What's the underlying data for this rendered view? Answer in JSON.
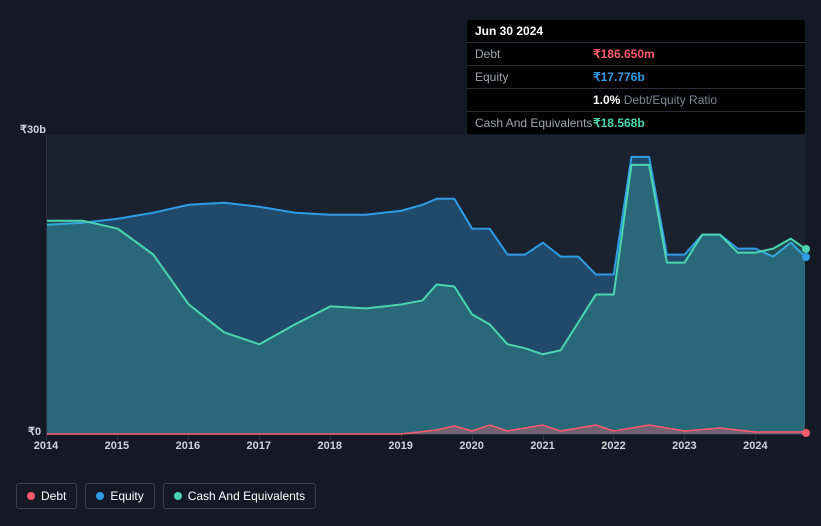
{
  "tooltip": {
    "date": "Jun 30 2024",
    "rows": [
      {
        "label": "Debt",
        "value": "₹186.650m",
        "color": "#ff5a6e"
      },
      {
        "label": "Equity",
        "value": "₹17.776b",
        "color": "#2e9de6"
      },
      {
        "label": "",
        "value_prefix": "1.0%",
        "value_suffix": " Debt/Equity Ratio",
        "prefix_color": "#ffffff",
        "suffix_color": "#808893"
      },
      {
        "label": "Cash And Equivalents",
        "value": "₹18.568b",
        "color": "#4bd6b0"
      }
    ]
  },
  "chart": {
    "type": "area",
    "background_color": "#1a2230",
    "page_bg": "#131a26",
    "border_color": "#2a3240",
    "ylim": [
      0,
      30
    ],
    "ylabels": [
      {
        "v": 30,
        "text": "₹30b"
      },
      {
        "v": 0,
        "text": "₹0"
      }
    ],
    "x_years": [
      2014,
      2015,
      2016,
      2017,
      2018,
      2019,
      2020,
      2021,
      2022,
      2023,
      2024
    ],
    "x_domain": [
      2014,
      2024.7
    ],
    "series": [
      {
        "name": "Debt",
        "color": "#ff5a6e",
        "fill_opacity": 0.35,
        "line_width": 1.5,
        "points": [
          [
            2014,
            0
          ],
          [
            2015,
            0
          ],
          [
            2016,
            0
          ],
          [
            2017,
            0
          ],
          [
            2018,
            0
          ],
          [
            2019,
            0
          ],
          [
            2019.5,
            0.4
          ],
          [
            2019.75,
            0.8
          ],
          [
            2020,
            0.3
          ],
          [
            2020.25,
            0.9
          ],
          [
            2020.5,
            0.3
          ],
          [
            2021,
            0.9
          ],
          [
            2021.25,
            0.3
          ],
          [
            2021.75,
            0.9
          ],
          [
            2022,
            0.3
          ],
          [
            2022.5,
            0.9
          ],
          [
            2023,
            0.3
          ],
          [
            2023.5,
            0.6
          ],
          [
            2024,
            0.2
          ],
          [
            2024.5,
            0.2
          ],
          [
            2024.7,
            0.2
          ]
        ]
      },
      {
        "name": "Equity",
        "color": "#2e9de6",
        "fill_opacity": 0.32,
        "line_width": 2,
        "points": [
          [
            2014,
            21
          ],
          [
            2014.5,
            21.2
          ],
          [
            2015,
            21.6
          ],
          [
            2015.5,
            22.2
          ],
          [
            2016,
            23
          ],
          [
            2016.5,
            23.2
          ],
          [
            2017,
            22.8
          ],
          [
            2017.5,
            22.2
          ],
          [
            2018,
            22
          ],
          [
            2018.5,
            22
          ],
          [
            2019,
            22.4
          ],
          [
            2019.3,
            23
          ],
          [
            2019.5,
            23.6
          ],
          [
            2019.75,
            23.6
          ],
          [
            2020,
            20.6
          ],
          [
            2020.25,
            20.6
          ],
          [
            2020.5,
            18
          ],
          [
            2020.75,
            18
          ],
          [
            2021,
            19.2
          ],
          [
            2021.25,
            17.8
          ],
          [
            2021.5,
            17.8
          ],
          [
            2021.75,
            16
          ],
          [
            2022,
            16
          ],
          [
            2022.25,
            27.8
          ],
          [
            2022.5,
            27.8
          ],
          [
            2022.75,
            18
          ],
          [
            2023,
            18
          ],
          [
            2023.25,
            20
          ],
          [
            2023.5,
            20
          ],
          [
            2023.75,
            18.6
          ],
          [
            2024,
            18.6
          ],
          [
            2024.25,
            17.8
          ],
          [
            2024.5,
            19.2
          ],
          [
            2024.7,
            17.8
          ]
        ]
      },
      {
        "name": "Cash And Equivalents",
        "color": "#4bd6b0",
        "fill_opacity": 0.22,
        "line_width": 2,
        "points": [
          [
            2014,
            21.4
          ],
          [
            2014.5,
            21.4
          ],
          [
            2015,
            20.6
          ],
          [
            2015.5,
            18
          ],
          [
            2016,
            13
          ],
          [
            2016.5,
            10.2
          ],
          [
            2017,
            9
          ],
          [
            2017.5,
            11
          ],
          [
            2018,
            12.8
          ],
          [
            2018.5,
            12.6
          ],
          [
            2019,
            13
          ],
          [
            2019.3,
            13.4
          ],
          [
            2019.5,
            15
          ],
          [
            2019.75,
            14.8
          ],
          [
            2020,
            12
          ],
          [
            2020.25,
            11
          ],
          [
            2020.5,
            9
          ],
          [
            2020.75,
            8.6
          ],
          [
            2021,
            8
          ],
          [
            2021.25,
            8.4
          ],
          [
            2021.5,
            11.2
          ],
          [
            2021.75,
            14
          ],
          [
            2022,
            14
          ],
          [
            2022.25,
            27
          ],
          [
            2022.5,
            27
          ],
          [
            2022.75,
            17.2
          ],
          [
            2023,
            17.2
          ],
          [
            2023.25,
            20
          ],
          [
            2023.5,
            20
          ],
          [
            2023.75,
            18.2
          ],
          [
            2024,
            18.2
          ],
          [
            2024.25,
            18.6
          ],
          [
            2024.5,
            19.6
          ],
          [
            2024.7,
            18.6
          ]
        ]
      }
    ],
    "end_markers": [
      {
        "series": "Debt",
        "color": "#ff5a6e",
        "y": 0.2
      },
      {
        "series": "Equity",
        "color": "#2e9de6",
        "y": 17.8
      },
      {
        "series": "Cash And Equivalents",
        "color": "#4bd6b0",
        "y": 18.6
      }
    ]
  },
  "legend": {
    "items": [
      {
        "label": "Debt",
        "color": "#ff5a6e"
      },
      {
        "label": "Equity",
        "color": "#2e9de6"
      },
      {
        "label": "Cash And Equivalents",
        "color": "#4bd6b0"
      }
    ]
  }
}
